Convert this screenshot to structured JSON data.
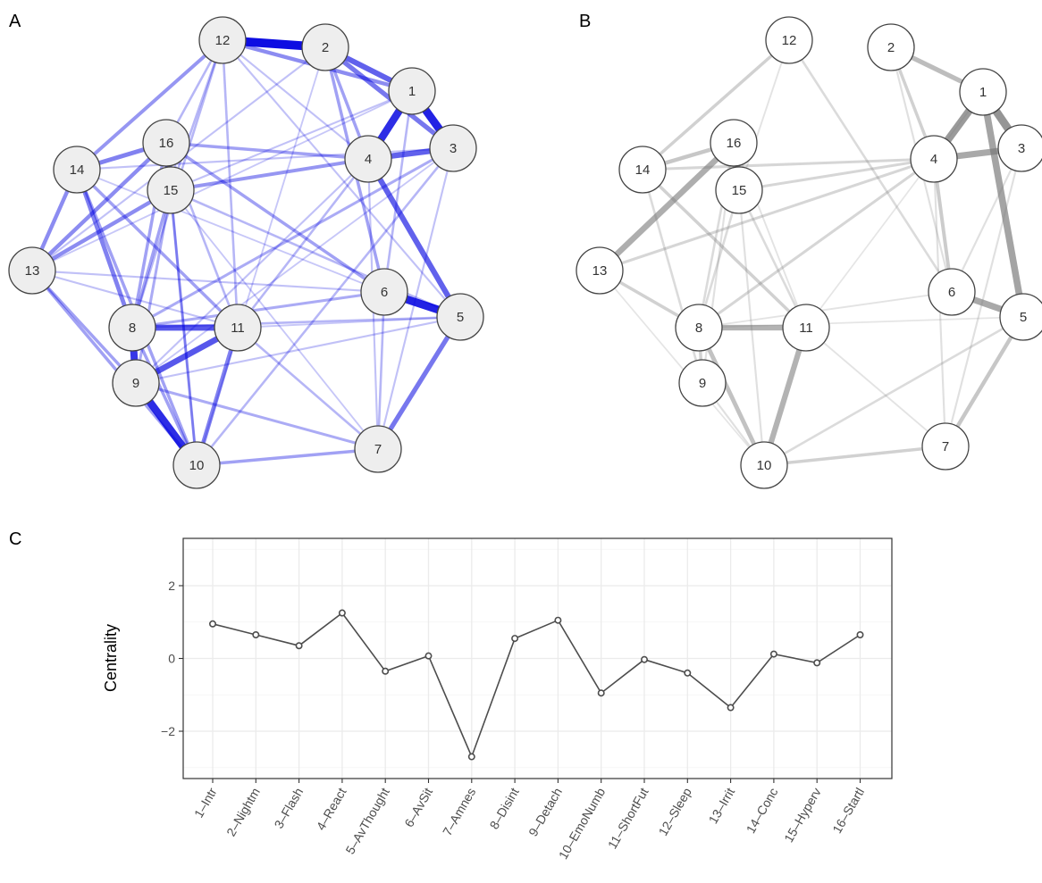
{
  "panel_labels": {
    "a": "A",
    "b": "B",
    "c": "C"
  },
  "colors": {
    "network_a_edge": "#0000e0",
    "network_a_node_fill": "#eeeeee",
    "network_b_edge": "#777777",
    "network_b_node_fill": "#ffffff",
    "node_border": "#444444",
    "line": "#4d4d4d",
    "grid": "#ebebeb"
  },
  "network_a": {
    "nodes": [
      "1",
      "2",
      "3",
      "4",
      "5",
      "6",
      "7",
      "8",
      "9",
      "10",
      "11",
      "12",
      "13",
      "14",
      "15",
      "16"
    ],
    "edges": [
      [
        "12",
        "2",
        1.0
      ],
      [
        "1",
        "3",
        0.9
      ],
      [
        "1",
        "4",
        0.85
      ],
      [
        "6",
        "5",
        0.9
      ],
      [
        "9",
        "10",
        0.85
      ],
      [
        "8",
        "9",
        0.8
      ],
      [
        "2",
        "1",
        0.6
      ],
      [
        "4",
        "3",
        0.6
      ],
      [
        "4",
        "5",
        0.6
      ],
      [
        "8",
        "11",
        0.65
      ],
      [
        "11",
        "9",
        0.65
      ],
      [
        "16",
        "15",
        0.8
      ],
      [
        "2",
        "3",
        0.5
      ],
      [
        "12",
        "1",
        0.4
      ],
      [
        "7",
        "5",
        0.5
      ],
      [
        "11",
        "10",
        0.45
      ],
      [
        "14",
        "13",
        0.4
      ],
      [
        "16",
        "13",
        0.4
      ],
      [
        "14",
        "8",
        0.45
      ],
      [
        "15",
        "13",
        0.4
      ],
      [
        "14",
        "16",
        0.45
      ],
      [
        "12",
        "14",
        0.35
      ],
      [
        "16",
        "4",
        0.3
      ],
      [
        "15",
        "4",
        0.35
      ],
      [
        "14",
        "11",
        0.3
      ],
      [
        "16",
        "6",
        0.3
      ],
      [
        "2",
        "6",
        0.3
      ],
      [
        "14",
        "10",
        0.3
      ],
      [
        "13",
        "9",
        0.3
      ],
      [
        "13",
        "10",
        0.3
      ],
      [
        "8",
        "6",
        0.25
      ],
      [
        "8",
        "3",
        0.25
      ],
      [
        "10",
        "7",
        0.3
      ],
      [
        "9",
        "7",
        0.25
      ],
      [
        "6",
        "7",
        0.2
      ],
      [
        "12",
        "15",
        0.2
      ],
      [
        "2",
        "4",
        0.3
      ],
      [
        "15",
        "8",
        0.3
      ],
      [
        "16",
        "8",
        0.3
      ],
      [
        "15",
        "9",
        0.25
      ],
      [
        "8",
        "5",
        0.2
      ],
      [
        "12",
        "11",
        0.2
      ],
      [
        "16",
        "10",
        0.25
      ],
      [
        "15",
        "5",
        0.2
      ],
      [
        "1",
        "6",
        0.2
      ],
      [
        "4",
        "11",
        0.2
      ],
      [
        "3",
        "10",
        0.2
      ],
      [
        "12",
        "8",
        0.2
      ],
      [
        "2",
        "13",
        0.15
      ],
      [
        "14",
        "3",
        0.15
      ],
      [
        "15",
        "10",
        0.2
      ],
      [
        "9",
        "5",
        0.15
      ],
      [
        "11",
        "7",
        0.2
      ],
      [
        "13",
        "6",
        0.15
      ],
      [
        "12",
        "5",
        0.15
      ],
      [
        "4",
        "9",
        0.15
      ],
      [
        "1",
        "13",
        0.12
      ],
      [
        "2",
        "10",
        0.12
      ],
      [
        "3",
        "7",
        0.15
      ],
      [
        "4",
        "7",
        0.15
      ],
      [
        "14",
        "6",
        0.12
      ],
      [
        "15",
        "7",
        0.12
      ],
      [
        "16",
        "11",
        0.2
      ],
      [
        "1",
        "15",
        0.15
      ],
      [
        "3",
        "9",
        0.12
      ],
      [
        "12",
        "4",
        0.15
      ],
      [
        "5",
        "11",
        0.12
      ],
      [
        "8",
        "10",
        0.3
      ],
      [
        "13",
        "11",
        0.15
      ],
      [
        "12",
        "16",
        0.2
      ]
    ]
  },
  "network_b": {
    "nodes": [
      "1",
      "2",
      "3",
      "4",
      "5",
      "6",
      "7",
      "8",
      "9",
      "10",
      "11",
      "12",
      "13",
      "14",
      "15",
      "16"
    ],
    "edges": [
      [
        "1",
        "3",
        0.9
      ],
      [
        "1",
        "4",
        0.85
      ],
      [
        "4",
        "3",
        0.7
      ],
      [
        "1",
        "5",
        0.75
      ],
      [
        "6",
        "5",
        0.7
      ],
      [
        "16",
        "15",
        0.9
      ],
      [
        "16",
        "13",
        0.65
      ],
      [
        "8",
        "11",
        0.6
      ],
      [
        "11",
        "10",
        0.6
      ],
      [
        "2",
        "1",
        0.5
      ],
      [
        "14",
        "16",
        0.4
      ],
      [
        "8",
        "10",
        0.45
      ],
      [
        "8",
        "9",
        0.3
      ],
      [
        "7",
        "5",
        0.4
      ],
      [
        "4",
        "6",
        0.35
      ],
      [
        "2",
        "4",
        0.3
      ],
      [
        "13",
        "8",
        0.3
      ],
      [
        "14",
        "4",
        0.25
      ],
      [
        "15",
        "4",
        0.25
      ],
      [
        "12",
        "14",
        0.3
      ],
      [
        "12",
        "6",
        0.2
      ],
      [
        "13",
        "4",
        0.25
      ],
      [
        "14",
        "11",
        0.3
      ],
      [
        "10",
        "7",
        0.3
      ],
      [
        "8",
        "4",
        0.25
      ],
      [
        "15",
        "8",
        0.2
      ],
      [
        "16",
        "8",
        0.2
      ],
      [
        "14",
        "9",
        0.2
      ],
      [
        "15",
        "10",
        0.15
      ],
      [
        "10",
        "5",
        0.2
      ],
      [
        "4",
        "7",
        0.15
      ],
      [
        "3",
        "6",
        0.15
      ],
      [
        "12",
        "15",
        0.12
      ],
      [
        "16",
        "9",
        0.15
      ],
      [
        "15",
        "11",
        0.2
      ],
      [
        "13",
        "10",
        0.1
      ],
      [
        "11",
        "7",
        0.12
      ],
      [
        "6",
        "8",
        0.12
      ],
      [
        "3",
        "7",
        0.15
      ],
      [
        "9",
        "10",
        0.15
      ],
      [
        "5",
        "8",
        0.1
      ],
      [
        "2",
        "6",
        0.15
      ],
      [
        "1",
        "11",
        0.1
      ],
      [
        "16",
        "11",
        0.12
      ]
    ]
  },
  "chart_data": {
    "type": "line",
    "panel": "C",
    "categories": [
      "1–Intr",
      "2–Nightm",
      "3–Flash",
      "4–React",
      "5–AvThought",
      "6–AvSit",
      "7–Amnes",
      "8–Disint",
      "9–Detach",
      "10–EmoNumb",
      "11–ShortFut",
      "12–Sleep",
      "13–Irrit",
      "14–Conc",
      "15–Hyperv",
      "16–Startl"
    ],
    "values": [
      0.95,
      0.65,
      0.35,
      1.25,
      -0.35,
      0.07,
      -2.7,
      0.55,
      1.05,
      -0.95,
      -0.03,
      -0.4,
      -1.35,
      0.12,
      -0.12,
      0.65
    ],
    "ylabel": "Centrality",
    "xlabel": "",
    "ylim": [
      -3.3,
      3.3
    ],
    "yticks": [
      -2,
      0,
      2
    ],
    "ytick_labels": [
      "−2",
      "0",
      "2"
    ],
    "grid": true
  }
}
